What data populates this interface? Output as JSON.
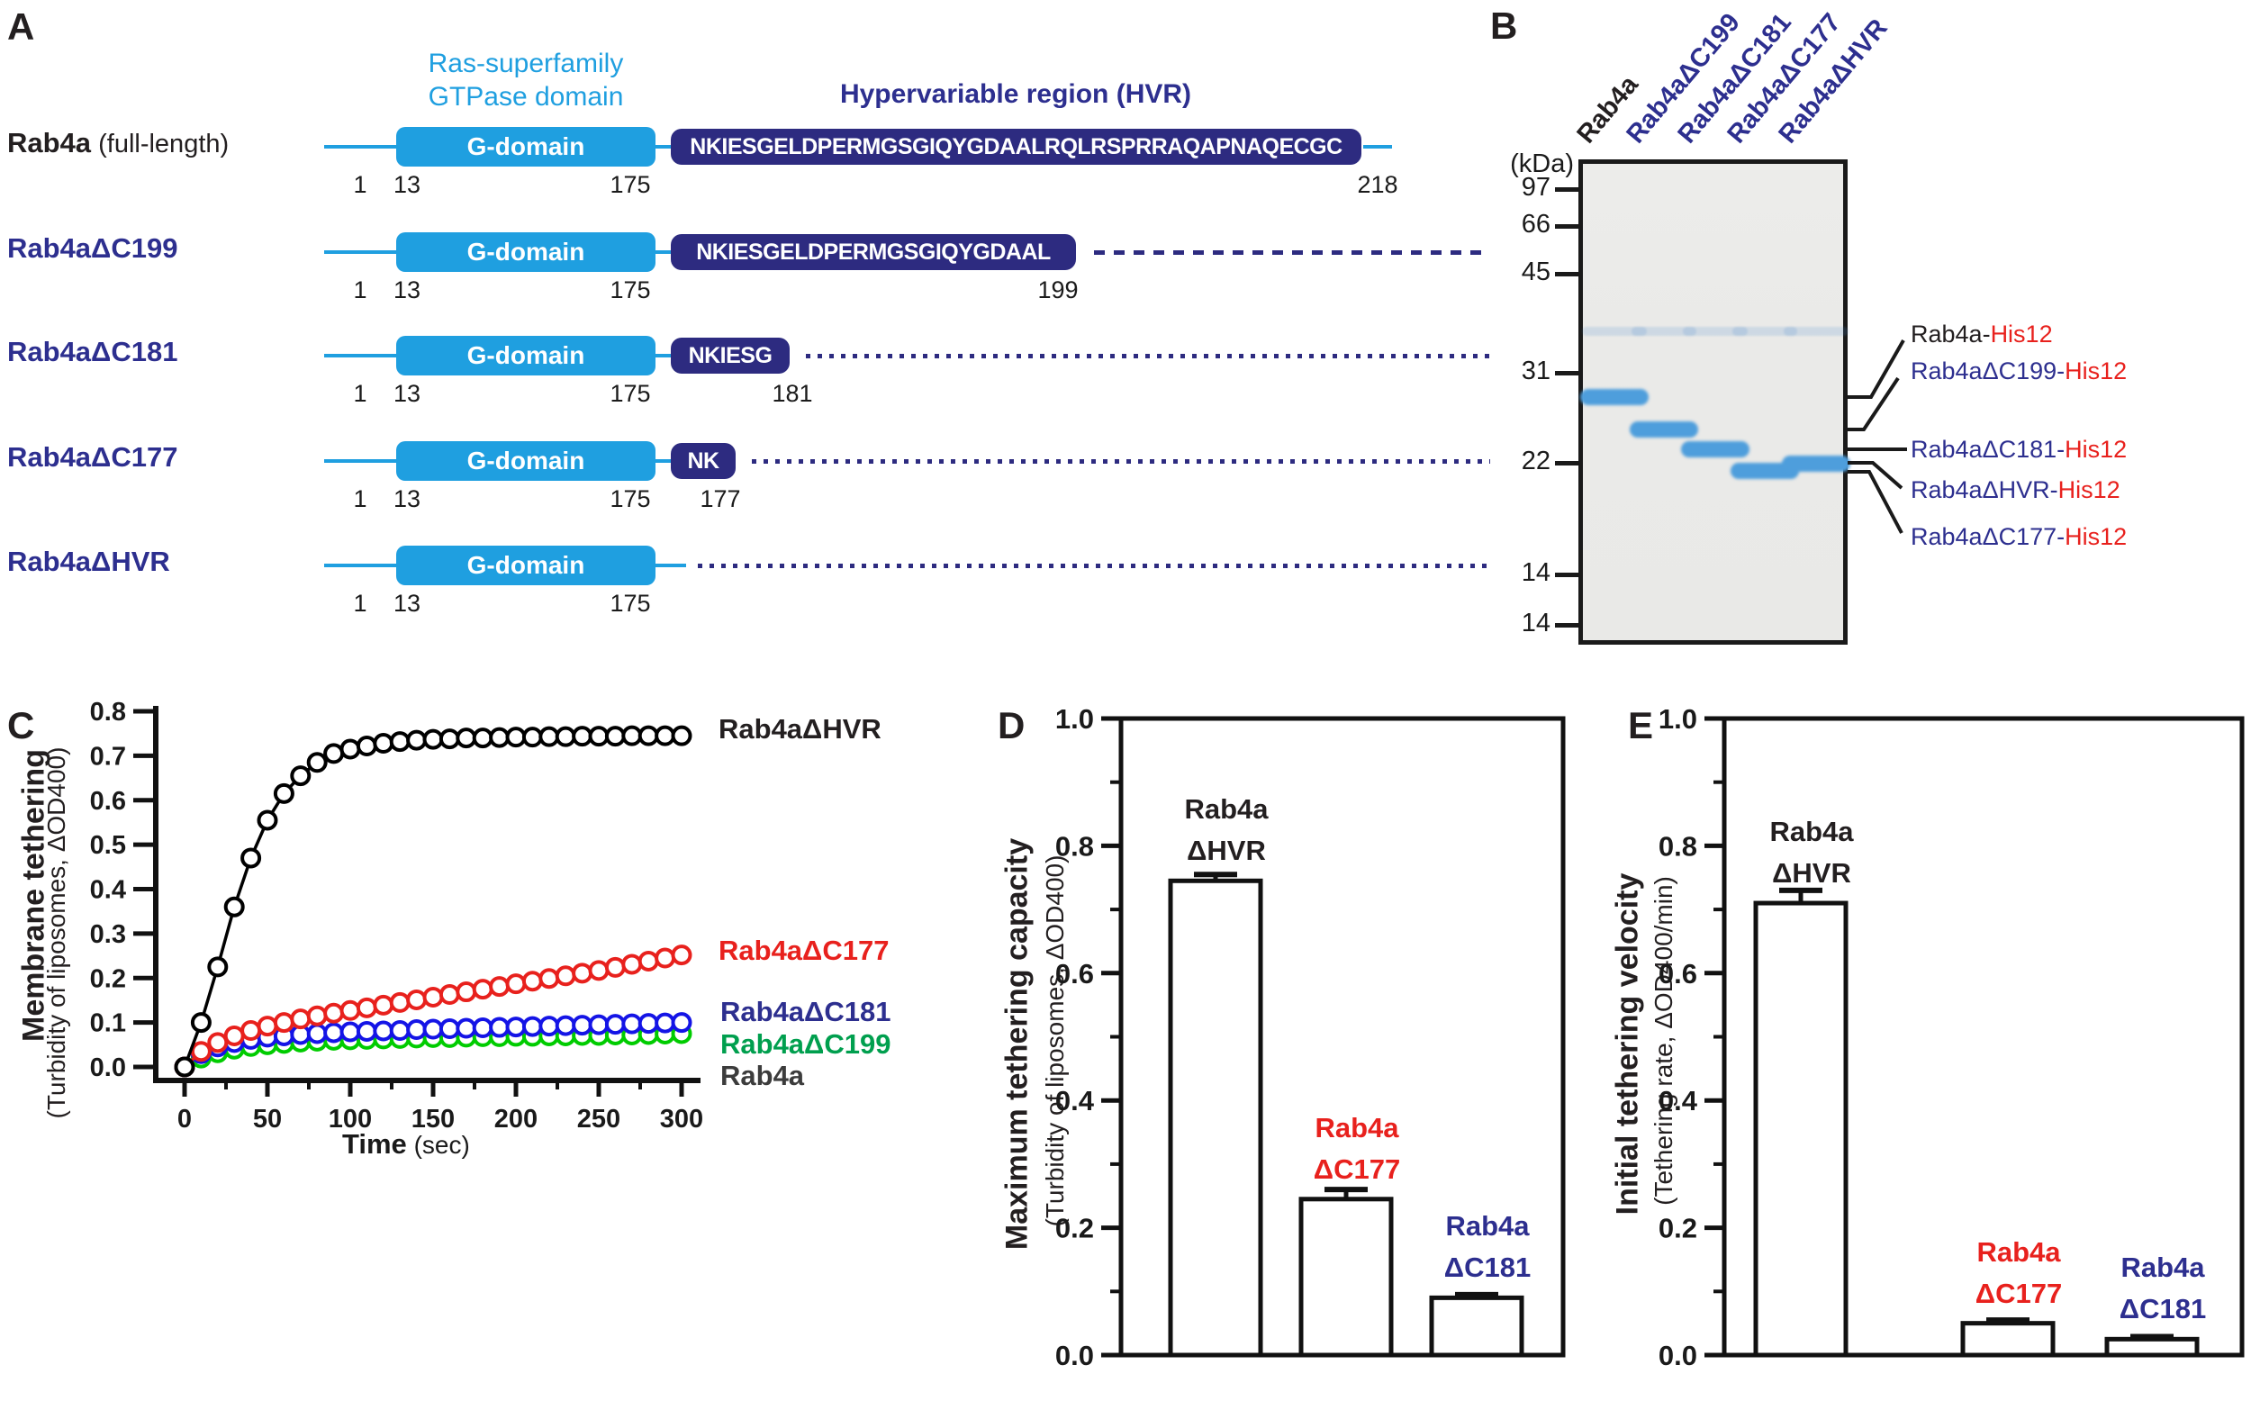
{
  "panels": {
    "a": "A",
    "b": "B",
    "c": "C",
    "d": "D",
    "e": "E"
  },
  "panelA": {
    "gtpase_title": "Ras-superfamily\nGTPase domain",
    "gtpase_color": "#1F9FE0",
    "hvr_title": "Hypervariable region (HVR)",
    "hvr_color": "#2D2F8F",
    "g_domain_label": "G-domain",
    "navy": "#2D2B80",
    "constructs": [
      {
        "name": "Rab4a",
        "suffix": " (full-length)",
        "color": "#231F20",
        "start": "1",
        "g_start": "13",
        "g_end": "175",
        "hvr_seq": "NKIESGELDPERMGSGIQYGDAALRQLRSPRRAQAPNAQECGC",
        "end_label": "218"
      },
      {
        "name": "Rab4aΔC199",
        "suffix": "",
        "color": "#2D2F8F",
        "start": "1",
        "g_start": "13",
        "g_end": "175",
        "hvr_seq": "NKIESGELDPERMGSGIQYGDAAL",
        "end_label": "199"
      },
      {
        "name": "Rab4aΔC181",
        "suffix": "",
        "color": "#2D2F8F",
        "start": "1",
        "g_start": "13",
        "g_end": "175",
        "hvr_seq": "NKIESG",
        "end_label": "181"
      },
      {
        "name": "Rab4aΔC177",
        "suffix": "",
        "color": "#2D2F8F",
        "start": "1",
        "g_start": "13",
        "g_end": "175",
        "hvr_seq": "NK",
        "end_label": "177"
      },
      {
        "name": "Rab4aΔHVR",
        "suffix": "",
        "color": "#2D2F8F",
        "start": "1",
        "g_start": "13",
        "g_end": "175",
        "hvr_seq": "",
        "end_label": ""
      }
    ]
  },
  "panelB": {
    "kda_label": "(kDa)",
    "lanes": [
      {
        "text": "Rab4a",
        "color": "#231F20"
      },
      {
        "text": "Rab4aΔC199",
        "color": "#2D2F8F"
      },
      {
        "text": "Rab4aΔC181",
        "color": "#2D2F8F"
      },
      {
        "text": "Rab4aΔC177",
        "color": "#2D2F8F"
      },
      {
        "text": "Rab4aΔHVR",
        "color": "#2D2F8F"
      }
    ],
    "mw_markers": [
      "97",
      "66",
      "45",
      "31",
      "22",
      "14",
      "14"
    ],
    "band_labels": [
      {
        "name": "Rab4a-",
        "color": "#231F20",
        "his": "His12",
        "his_color": "#E8211D"
      },
      {
        "name": "Rab4aΔC199-",
        "color": "#2D2F8F",
        "his": "His12",
        "his_color": "#E8211D"
      },
      {
        "name": "Rab4aΔC181-",
        "color": "#2D2F8F",
        "his": "His12",
        "his_color": "#E8211D"
      },
      {
        "name": "Rab4aΔHVR-",
        "color": "#2D2F8F",
        "his": "His12",
        "his_color": "#E8211D"
      },
      {
        "name": "Rab4aΔC177-",
        "color": "#2D2F8F",
        "his": "His12",
        "his_color": "#E8211D"
      }
    ],
    "band_color": "#4E9EDC"
  },
  "chart_data": [
    {
      "id": "C",
      "type": "line",
      "title": "Membrane tethering",
      "subtitle": "(Turbidity of liposomes, ΔOD400)",
      "xlabel": "Time",
      "xlabel_unit": " (sec)",
      "xlim": [
        0,
        300
      ],
      "ylim": [
        0,
        0.8
      ],
      "xticks": [
        0,
        50,
        100,
        150,
        200,
        250,
        300
      ],
      "xminor_step": 25,
      "ytick_step": 0.1,
      "x_step": 10,
      "grid": false,
      "legend_position": "right-of-curves",
      "series": [
        {
          "name": "Rab4aΔHVR",
          "color": "#000000",
          "label_color": "#231F20",
          "marker": true,
          "values": [
            0,
            0.1,
            0.225,
            0.36,
            0.47,
            0.555,
            0.615,
            0.655,
            0.685,
            0.705,
            0.715,
            0.722,
            0.728,
            0.732,
            0.735,
            0.737,
            0.738,
            0.74,
            0.74,
            0.741,
            0.742,
            0.742,
            0.743,
            0.743,
            0.744,
            0.744,
            0.744,
            0.745,
            0.745,
            0.745,
            0.745
          ]
        },
        {
          "name": "Rab4aΔC177",
          "color": "#E8211D",
          "label_color": "#E8211D",
          "marker": true,
          "values": [
            0,
            0.035,
            0.055,
            0.07,
            0.082,
            0.092,
            0.1,
            0.108,
            0.115,
            0.121,
            0.127,
            0.133,
            0.139,
            0.145,
            0.151,
            0.157,
            0.163,
            0.169,
            0.175,
            0.181,
            0.187,
            0.193,
            0.199,
            0.205,
            0.211,
            0.217,
            0.224,
            0.231,
            0.238,
            0.245,
            0.252
          ]
        },
        {
          "name": "Rab4aΔC181",
          "color": "#1414E6",
          "label_color": "#2D2F8F",
          "marker": true,
          "values": [
            0,
            0.03,
            0.045,
            0.055,
            0.062,
            0.067,
            0.07,
            0.073,
            0.075,
            0.077,
            0.079,
            0.08,
            0.081,
            0.082,
            0.084,
            0.085,
            0.086,
            0.087,
            0.088,
            0.089,
            0.09,
            0.091,
            0.092,
            0.093,
            0.094,
            0.095,
            0.096,
            0.097,
            0.098,
            0.099,
            0.1
          ]
        },
        {
          "name": "Rab4aΔC199",
          "color": "#00CC00",
          "label_color": "#009F4E",
          "marker": true,
          "values": [
            0,
            0.02,
            0.032,
            0.04,
            0.046,
            0.05,
            0.053,
            0.056,
            0.058,
            0.06,
            0.061,
            0.062,
            0.063,
            0.064,
            0.065,
            0.066,
            0.066,
            0.067,
            0.068,
            0.068,
            0.069,
            0.069,
            0.07,
            0.07,
            0.071,
            0.071,
            0.072,
            0.072,
            0.073,
            0.074,
            0.075
          ]
        },
        {
          "name": "Rab4a",
          "color": "#111111",
          "label_color": "#3C3C3C",
          "marker": false,
          "values": [
            0,
            0.014,
            0.024,
            0.032,
            0.038,
            0.042,
            0.046,
            0.049,
            0.051,
            0.053,
            0.055,
            0.056,
            0.057,
            0.058,
            0.059,
            0.06,
            0.061,
            0.062,
            0.062,
            0.063,
            0.063,
            0.064,
            0.064,
            0.065,
            0.065,
            0.066,
            0.066,
            0.067,
            0.067,
            0.068,
            0.068
          ]
        }
      ]
    },
    {
      "id": "D",
      "type": "bar",
      "title": "Maximum tethering capacity",
      "subtitle": "(Turbidity of liposomes, ΔOD400)",
      "ylim": [
        0,
        1.0
      ],
      "ytick_step": 0.2,
      "yminor_step": 0.1,
      "grid": false,
      "bars": [
        {
          "label_l1": "Rab4a",
          "label_l2": "ΔHVR",
          "label_color": "#231F20",
          "value": 0.745,
          "error": 0.01
        },
        {
          "label_l1": "Rab4a",
          "label_l2": "ΔC177",
          "label_color": "#E8211D",
          "value": 0.245,
          "error": 0.015
        },
        {
          "label_l1": "Rab4a",
          "label_l2": "ΔC181",
          "label_color": "#2D2F8F",
          "value": 0.09,
          "error": 0.005
        }
      ]
    },
    {
      "id": "E",
      "type": "bar",
      "title": "Initial tethering velocity",
      "subtitle": "(Tethering rate, ΔOD400/min)",
      "ylim": [
        0,
        1.0
      ],
      "ytick_step": 0.2,
      "yminor_step": 0.1,
      "grid": false,
      "bars": [
        {
          "label_l1": "Rab4a",
          "label_l2": "ΔHVR",
          "label_color": "#231F20",
          "value": 0.71,
          "error": 0.02
        },
        {
          "label_l1": "Rab4a",
          "label_l2": "ΔC177",
          "label_color": "#E8211D",
          "value": 0.05,
          "error": 0.005
        },
        {
          "label_l1": "Rab4a",
          "label_l2": "ΔC181",
          "label_color": "#2D2F8F",
          "value": 0.025,
          "error": 0.004
        }
      ]
    }
  ]
}
